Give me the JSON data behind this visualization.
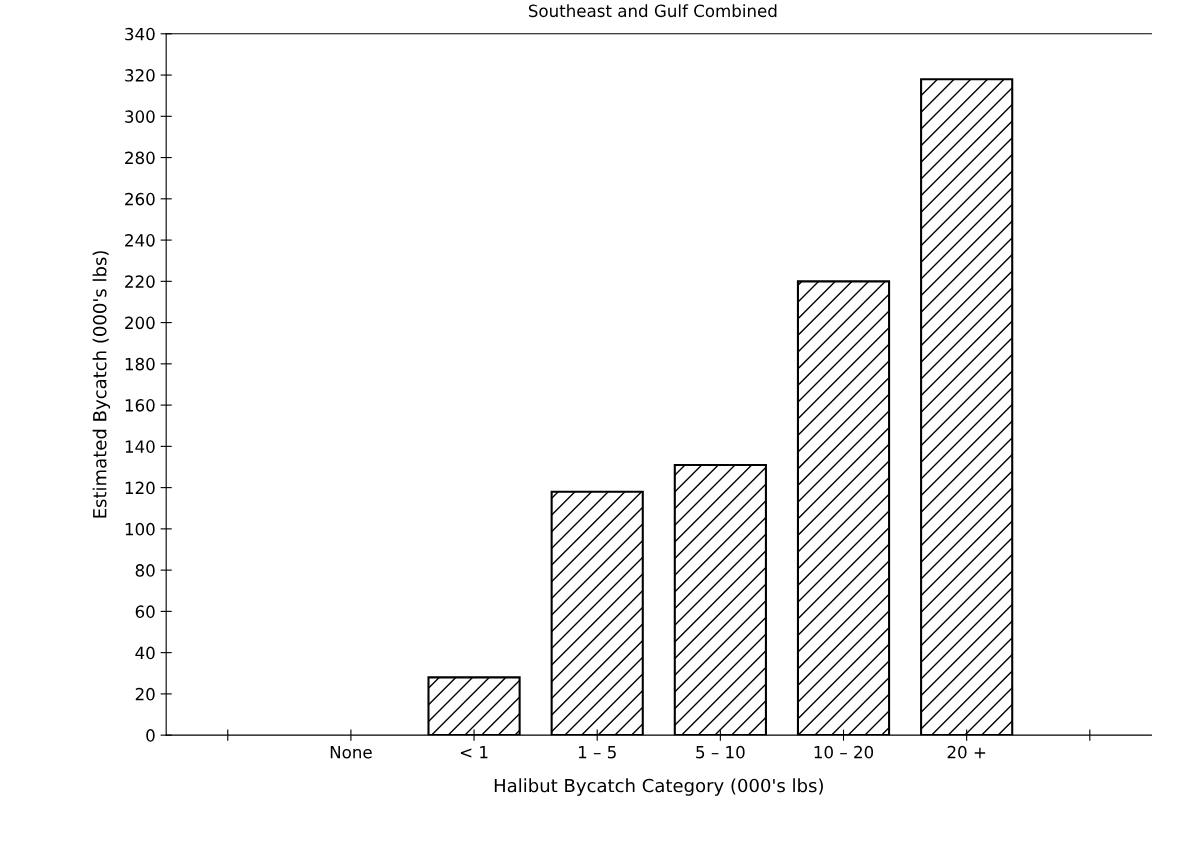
{
  "chart_data": {
    "type": "bar",
    "title": "Southeast and Gulf Combined",
    "xlabel": "Halibut Bycatch Category (000's lbs)",
    "ylabel": "Estimated Bycatch (000's lbs)",
    "categories": [
      null,
      "None",
      "< 1",
      "1 – 5",
      "5 – 10",
      "10 – 20",
      "20 +",
      null
    ],
    "values": [
      null,
      0,
      28,
      118,
      131,
      220,
      318,
      null
    ],
    "color": "#000000",
    "ylim": [
      0,
      340
    ],
    "yticks": [
      0,
      20,
      40,
      60,
      80,
      100,
      120,
      140,
      160,
      180,
      200,
      220,
      240,
      260,
      280,
      300,
      320,
      340
    ],
    "grid": false
  }
}
